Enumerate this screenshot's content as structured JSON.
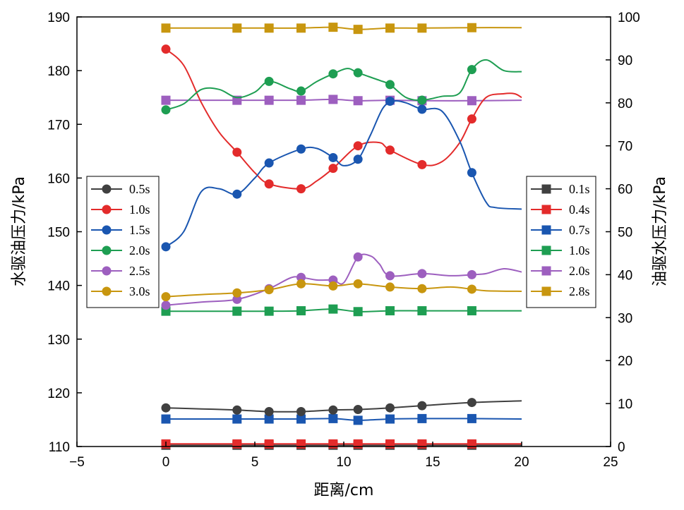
{
  "chart_data": {
    "type": "line",
    "xlabel": "距离/cm",
    "x_ticks": [
      -5,
      0,
      5,
      10,
      15,
      20,
      25
    ],
    "xlim": [
      -5,
      25
    ],
    "left_axis": {
      "label": "水驱油压力/kPa",
      "ylim": [
        110,
        190
      ],
      "ticks": [
        110,
        120,
        130,
        140,
        150,
        160,
        170,
        180,
        190
      ]
    },
    "right_axis": {
      "label": "油驱水压力/kPa",
      "ylim": [
        0,
        100
      ],
      "ticks": [
        0,
        10,
        20,
        30,
        40,
        50,
        60,
        70,
        80,
        90,
        100
      ]
    },
    "marker_x": [
      0,
      4,
      5.8,
      7.6,
      9.4,
      10.8,
      12.6,
      14.4,
      17.2
    ],
    "series_left": [
      {
        "name": "0.5s",
        "color": "#404040",
        "marker": "circle",
        "line": [
          [
            0,
            117.2
          ],
          [
            2,
            117
          ],
          [
            4,
            116.8
          ],
          [
            5.8,
            116.5
          ],
          [
            7.6,
            116.5
          ],
          [
            9.4,
            116.8
          ],
          [
            10.8,
            116.9
          ],
          [
            12.6,
            117.2
          ],
          [
            14.4,
            117.6
          ],
          [
            17.2,
            118.2
          ],
          [
            20,
            118.5
          ]
        ],
        "markers": [
          117.2,
          116.8,
          116.5,
          116.5,
          116.8,
          116.9,
          117.2,
          117.6,
          118.2
        ]
      },
      {
        "name": "1.0s",
        "color": "#e32b2b",
        "marker": "circle",
        "line": [
          [
            0,
            184
          ],
          [
            1,
            181
          ],
          [
            2,
            174
          ],
          [
            3,
            168.5
          ],
          [
            4,
            164.8
          ],
          [
            5,
            161
          ],
          [
            5.8,
            158.9
          ],
          [
            7.6,
            158
          ],
          [
            8.5,
            159.5
          ],
          [
            9.4,
            161.8
          ],
          [
            10.8,
            166
          ],
          [
            12,
            166.6
          ],
          [
            12.6,
            165.2
          ],
          [
            14.4,
            162.5
          ],
          [
            15.5,
            163
          ],
          [
            16.5,
            166.5
          ],
          [
            17.2,
            171
          ],
          [
            18,
            175
          ],
          [
            19,
            175.7
          ],
          [
            19.6,
            175.7
          ],
          [
            20,
            175
          ]
        ],
        "markers": [
          184,
          164.8,
          158.9,
          158,
          161.8,
          166,
          165.2,
          162.5,
          171
        ]
      },
      {
        "name": "1.5s",
        "color": "#1a56b0",
        "marker": "circle",
        "line": [
          [
            0,
            147.2
          ],
          [
            1,
            150
          ],
          [
            2,
            157.5
          ],
          [
            3,
            158
          ],
          [
            4,
            157
          ],
          [
            5,
            160
          ],
          [
            5.8,
            162.8
          ],
          [
            7.6,
            165.4
          ],
          [
            8.5,
            165.5
          ],
          [
            9.4,
            163.8
          ],
          [
            10,
            162.3
          ],
          [
            10.8,
            163.5
          ],
          [
            11.5,
            168
          ],
          [
            12.2,
            173
          ],
          [
            12.8,
            174.3
          ],
          [
            13.5,
            174
          ],
          [
            14.4,
            172.8
          ],
          [
            15.5,
            172.5
          ],
          [
            16.5,
            167
          ],
          [
            17.2,
            161
          ],
          [
            18,
            155.5
          ],
          [
            18.5,
            154.5
          ],
          [
            20,
            154.2
          ]
        ],
        "markers": [
          147.2,
          157,
          162.8,
          165.4,
          163.8,
          163.5,
          174.3,
          172.8,
          161
        ]
      },
      {
        "name": "2.0s",
        "color": "#1e9e52",
        "marker": "circle",
        "line": [
          [
            0,
            172.7
          ],
          [
            1,
            173.8
          ],
          [
            2,
            176.5
          ],
          [
            3,
            176.5
          ],
          [
            4,
            175
          ],
          [
            5,
            176
          ],
          [
            5.8,
            178
          ],
          [
            7,
            176.6
          ],
          [
            7.6,
            176.2
          ],
          [
            8.5,
            178
          ],
          [
            9.4,
            179.4
          ],
          [
            10.2,
            180.4
          ],
          [
            10.8,
            179.6
          ],
          [
            12,
            178.2
          ],
          [
            12.6,
            177.4
          ],
          [
            13.5,
            175
          ],
          [
            14.4,
            174.5
          ],
          [
            15.5,
            175.2
          ],
          [
            16.5,
            175.8
          ],
          [
            17.2,
            180.2
          ],
          [
            18,
            182
          ],
          [
            19,
            180
          ],
          [
            20,
            179.8
          ]
        ],
        "markers": [
          172.7,
          null,
          178,
          176.2,
          179.4,
          179.6,
          177.4,
          174.5,
          180.2
        ]
      },
      {
        "name": "2.5s",
        "color": "#9d5fbf",
        "marker": "circle",
        "line": [
          [
            0,
            136.3
          ],
          [
            2,
            136.9
          ],
          [
            4,
            137.4
          ],
          [
            5.8,
            139.4
          ],
          [
            7,
            141.4
          ],
          [
            7.6,
            141.5
          ],
          [
            8.5,
            141
          ],
          [
            9.4,
            141
          ],
          [
            10,
            140.5
          ],
          [
            10.8,
            145.3
          ],
          [
            11.5,
            145.5
          ],
          [
            12,
            144
          ],
          [
            12.6,
            141.8
          ],
          [
            14.4,
            142.2
          ],
          [
            16,
            141.8
          ],
          [
            17.2,
            142
          ],
          [
            18,
            142.2
          ],
          [
            19,
            143.1
          ],
          [
            20,
            142.5
          ]
        ],
        "markers": [
          136.3,
          137.4,
          139.4,
          141.5,
          141,
          145.3,
          141.8,
          142.2,
          142
        ]
      },
      {
        "name": "3.0s",
        "color": "#c8960f",
        "marker": "circle",
        "line": [
          [
            0,
            137.9
          ],
          [
            2,
            138.3
          ],
          [
            4,
            138.6
          ],
          [
            5.8,
            139.2
          ],
          [
            7.6,
            140.3
          ],
          [
            9.4,
            139.9
          ],
          [
            10.8,
            140.3
          ],
          [
            12.6,
            139.7
          ],
          [
            14.4,
            139.4
          ],
          [
            16,
            139.7
          ],
          [
            17.2,
            139.3
          ],
          [
            18,
            139
          ],
          [
            20,
            138.9
          ]
        ],
        "markers": [
          137.9,
          138.6,
          139.2,
          140.3,
          139.9,
          140.3,
          139.7,
          139.4,
          139.3
        ]
      }
    ],
    "series_right": [
      {
        "name": "0.1s",
        "color": "#404040",
        "marker": "square",
        "line": [
          [
            0,
            0.3
          ],
          [
            20,
            0.3
          ]
        ],
        "markers": [
          0.3,
          0.3,
          0.3,
          0.3,
          0.3,
          0.3,
          0.3,
          0.3,
          0.3
        ]
      },
      {
        "name": "0.4s",
        "color": "#e32b2b",
        "marker": "square",
        "line": [
          [
            0,
            0.6
          ],
          [
            20,
            0.6
          ]
        ],
        "markers": [
          0.6,
          0.6,
          0.6,
          0.6,
          0.6,
          0.6,
          0.6,
          0.6,
          0.6
        ]
      },
      {
        "name": "0.7s",
        "color": "#1a56b0",
        "marker": "square",
        "line": [
          [
            0,
            6.4
          ],
          [
            4,
            6.4
          ],
          [
            5.8,
            6.4
          ],
          [
            7.6,
            6.4
          ],
          [
            9.4,
            6.5
          ],
          [
            10.8,
            6.1
          ],
          [
            12.6,
            6.4
          ],
          [
            14.4,
            6.5
          ],
          [
            17.2,
            6.5
          ],
          [
            20,
            6.4
          ]
        ],
        "markers": [
          6.4,
          6.4,
          6.4,
          6.4,
          6.5,
          6.1,
          6.4,
          6.5,
          6.5
        ]
      },
      {
        "name": "1.0s",
        "color": "#1e9e52",
        "marker": "square",
        "line": [
          [
            0,
            31.5
          ],
          [
            4,
            31.5
          ],
          [
            5.8,
            31.5
          ],
          [
            7.6,
            31.6
          ],
          [
            9.4,
            32
          ],
          [
            10.8,
            31.4
          ],
          [
            12.6,
            31.6
          ],
          [
            14.4,
            31.6
          ],
          [
            17.2,
            31.6
          ],
          [
            20,
            31.6
          ]
        ],
        "markers": [
          31.5,
          31.5,
          31.5,
          31.6,
          32,
          31.4,
          31.6,
          31.6,
          31.6
        ]
      },
      {
        "name": "2.0s",
        "color": "#9d5fbf",
        "marker": "square",
        "line": [
          [
            0,
            80.6
          ],
          [
            4,
            80.6
          ],
          [
            5.8,
            80.6
          ],
          [
            7.6,
            80.6
          ],
          [
            9.4,
            80.8
          ],
          [
            10.8,
            80.5
          ],
          [
            12.6,
            80.6
          ],
          [
            14.4,
            80.5
          ],
          [
            17.2,
            80.5
          ],
          [
            20,
            80.6
          ]
        ],
        "markers": [
          80.6,
          80.6,
          80.6,
          80.6,
          80.8,
          80.5,
          80.6,
          80.5,
          80.5
        ]
      },
      {
        "name": "2.8s",
        "color": "#c8960f",
        "marker": "square",
        "line": [
          [
            0,
            97.4
          ],
          [
            4,
            97.4
          ],
          [
            5.8,
            97.4
          ],
          [
            7.6,
            97.4
          ],
          [
            9.4,
            97.6
          ],
          [
            10.8,
            97.1
          ],
          [
            12.6,
            97.4
          ],
          [
            14.4,
            97.4
          ],
          [
            17.2,
            97.5
          ],
          [
            20,
            97.5
          ]
        ],
        "markers": [
          97.4,
          97.4,
          97.4,
          97.4,
          97.6,
          97.1,
          97.4,
          97.4,
          97.5
        ]
      }
    ]
  }
}
